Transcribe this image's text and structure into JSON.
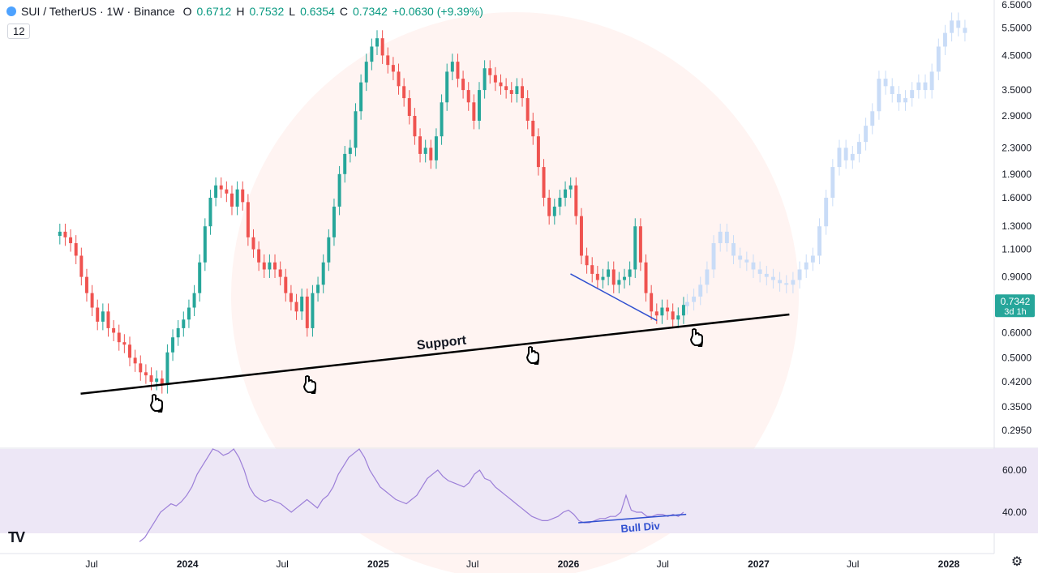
{
  "header": {
    "symbol": "SUI / TetherUS · 1W · Binance",
    "open_label": "O",
    "open": "0.6712",
    "high_label": "H",
    "high": "0.7532",
    "low_label": "L",
    "low": "0.6354",
    "close_label": "C",
    "close": "0.7342",
    "change": "+0.0630 (+9.39%)",
    "interval_badge": "12"
  },
  "chart_data": [
    {
      "type": "line",
      "description_role": "price",
      "y_scale": "log",
      "y_ticks": [
        "6.5000",
        "5.5000",
        "4.5000",
        "3.5000",
        "2.9000",
        "2.3000",
        "1.9000",
        "1.6000",
        "1.3000",
        "1.1000",
        "0.9000",
        "0.6000",
        "0.5000",
        "0.4200",
        "0.3500",
        "0.2950"
      ],
      "y_tick_values": [
        6.5,
        5.5,
        4.5,
        3.5,
        2.9,
        2.3,
        1.9,
        1.6,
        1.3,
        1.1,
        0.9,
        0.6,
        0.5,
        0.42,
        0.35,
        0.295
      ],
      "x_ticks": [
        "Jul",
        "2024",
        "Jul",
        "2025",
        "Jul",
        "2026",
        "Jul",
        "2027",
        "Jul",
        "2028"
      ],
      "x_tick_dates": [
        "2023-07-01",
        "2024-01-01",
        "2024-07-01",
        "2025-01-01",
        "2025-07-01",
        "2026-01-01",
        "2026-07-01",
        "2027-01-01",
        "2027-07-01",
        "2028-01-01"
      ],
      "last_price_label": "0.7342",
      "last_price_countdown": "3d 1h",
      "last_price": 0.7342,
      "candles_x_range": [
        "2023-05-01",
        "2026-08-10"
      ],
      "candles_close": [
        1.25,
        1.2,
        1.15,
        1.05,
        0.9,
        0.8,
        0.72,
        0.65,
        0.7,
        0.62,
        0.6,
        0.56,
        0.55,
        0.5,
        0.48,
        0.45,
        0.44,
        0.42,
        0.43,
        0.41,
        0.52,
        0.58,
        0.62,
        0.66,
        0.72,
        0.8,
        1.0,
        1.3,
        1.6,
        1.75,
        1.7,
        1.65,
        1.5,
        1.7,
        1.55,
        1.2,
        1.1,
        1.0,
        0.95,
        1.0,
        0.95,
        0.9,
        0.8,
        0.75,
        0.7,
        0.78,
        0.62,
        0.8,
        0.85,
        1.0,
        1.2,
        1.5,
        1.9,
        2.2,
        2.3,
        3.0,
        3.7,
        4.3,
        4.8,
        5.1,
        4.5,
        4.2,
        4.0,
        3.6,
        3.3,
        2.9,
        2.5,
        2.2,
        2.3,
        2.1,
        2.5,
        3.2,
        4.0,
        4.3,
        3.8,
        3.5,
        3.2,
        2.8,
        3.5,
        4.1,
        3.9,
        3.7,
        3.6,
        3.5,
        3.4,
        3.6,
        3.3,
        2.8,
        2.5,
        2.0,
        1.6,
        1.4,
        1.5,
        1.6,
        1.7,
        1.75,
        1.4,
        1.05,
        0.98,
        0.92,
        0.88,
        0.9,
        0.95,
        0.85,
        0.88,
        0.9,
        0.95,
        1.3,
        1.0,
        0.8,
        0.7,
        0.68,
        0.72,
        0.7,
        0.66,
        0.68,
        0.7342
      ],
      "projection_x_range": [
        "2026-08-17",
        "2028-02-01"
      ],
      "projection_close": [
        0.75,
        0.78,
        0.85,
        0.95,
        1.15,
        1.25,
        1.15,
        1.05,
        1.02,
        1.0,
        0.95,
        0.92,
        0.9,
        0.88,
        0.86,
        0.85,
        0.88,
        0.95,
        1.0,
        1.05,
        1.3,
        1.6,
        2.0,
        2.3,
        2.1,
        2.2,
        2.4,
        2.7,
        3.0,
        3.8,
        3.6,
        3.4,
        3.2,
        3.3,
        3.5,
        3.7,
        3.5,
        4.0,
        4.8,
        5.3,
        5.8,
        5.5,
        5.3
      ],
      "annotations": [
        {
          "text": "Support",
          "type": "trendline",
          "from": [
            "2023-06-10",
            0.385
          ],
          "to": [
            "2027-03-01",
            0.685
          ]
        },
        {
          "text": "",
          "type": "trendline",
          "from": [
            "2026-01-05",
            0.92
          ],
          "to": [
            "2026-06-20",
            0.655
          ]
        }
      ]
    },
    {
      "type": "line",
      "description_role": "oscillator",
      "y_ticks": [
        "60.00",
        "40.00"
      ],
      "y_tick_values": [
        60,
        40
      ],
      "band": [
        30,
        70
      ],
      "series_x_range": [
        "2023-10-01",
        "2026-08-10"
      ],
      "values": [
        26,
        28,
        32,
        36,
        40,
        42,
        44,
        43,
        45,
        48,
        52,
        58,
        62,
        66,
        70,
        69,
        67,
        68,
        70,
        66,
        60,
        52,
        48,
        46,
        45,
        46,
        45,
        44,
        42,
        40,
        42,
        44,
        46,
        44,
        42,
        46,
        48,
        52,
        58,
        62,
        66,
        68,
        70,
        66,
        60,
        56,
        52,
        50,
        48,
        46,
        45,
        44,
        46,
        48,
        52,
        56,
        58,
        60,
        57,
        55,
        54,
        53,
        52,
        54,
        58,
        60,
        56,
        55,
        52,
        50,
        48,
        46,
        44,
        42,
        40,
        38,
        37,
        36,
        36,
        37,
        38,
        40,
        41,
        39,
        36,
        35,
        35,
        36,
        37,
        37,
        38,
        38,
        40,
        48,
        41,
        40,
        40,
        38,
        38,
        39,
        39,
        38,
        39,
        38,
        40
      ],
      "annotations": [
        {
          "text": "Bull Div",
          "type": "trendline",
          "from": [
            "2026-01-20",
            35
          ],
          "to": [
            "2026-08-15",
            39
          ]
        }
      ]
    }
  ],
  "colors": {
    "up": "#26a69a",
    "down": "#ef5350",
    "projection": "#c9dcf7",
    "oscillator": "#9c7fd8",
    "band": "#ede7f6",
    "support": "#000000",
    "divergence": "#2f4fd0",
    "last_price_bg": "#26a69a"
  },
  "icons": [
    "tradingview-logo-icon",
    "settings-gear-icon",
    "hand-pointer-icon"
  ]
}
